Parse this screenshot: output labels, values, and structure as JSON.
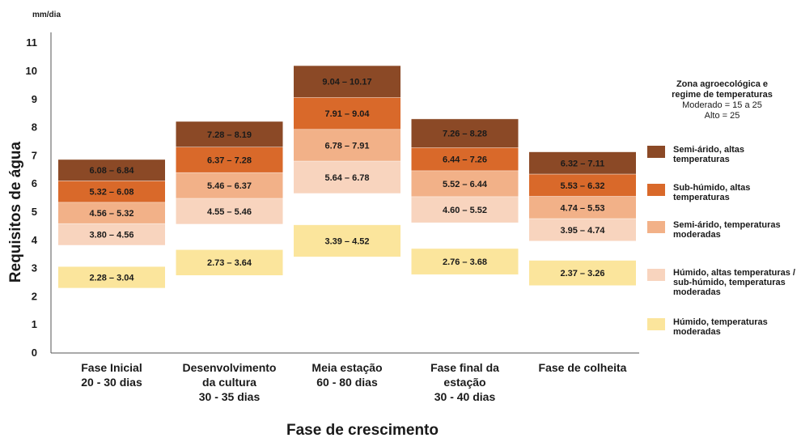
{
  "chart_data": {
    "type": "bar",
    "subtype": "floating-stacked-range",
    "unit_label": "mm/dia",
    "ylabel": "Requisitos de água",
    "xlabel": "Fase de crescimento",
    "ylim": [
      0,
      11
    ],
    "yticks": [
      0,
      1,
      2,
      3,
      4,
      5,
      6,
      7,
      8,
      9,
      10,
      11
    ],
    "grid": false,
    "legend_position": "right",
    "categories": [
      {
        "line1": "Fase Inicial",
        "line2": "20 - 30 dias",
        "line3": ""
      },
      {
        "line1": "Desenvolvimento",
        "line2": "da cultura",
        "line3": "30 - 35 dias"
      },
      {
        "line1": "Meia estação",
        "line2": "60 - 80 dias",
        "line3": ""
      },
      {
        "line1": "Fase final da",
        "line2": "estação",
        "line3": "30 - 40 dias"
      },
      {
        "line1": "Fase de colheita",
        "line2": "",
        "line3": ""
      }
    ],
    "series": [
      {
        "name": "Húmido, temperaturas moderadas",
        "color": "#fbe59c",
        "ranges": [
          [
            2.28,
            3.04
          ],
          [
            2.73,
            3.64
          ],
          [
            3.39,
            4.52
          ],
          [
            2.76,
            3.68
          ],
          [
            2.37,
            3.26
          ]
        ],
        "labels": [
          "2.28 – 3.04",
          "2.73 – 3.64",
          "3.39 – 4.52",
          "2.76 – 3.68",
          "2.37 – 3.26"
        ]
      },
      {
        "name": "Húmido, altas temperaturas / sub-húmido, temperaturas moderadas",
        "color": "#f8d4be",
        "ranges": [
          [
            3.8,
            4.56
          ],
          [
            4.55,
            5.46
          ],
          [
            5.64,
            6.78
          ],
          [
            4.6,
            5.52
          ],
          [
            3.95,
            4.74
          ]
        ],
        "labels": [
          "3.80 – 4.56",
          "4.55 – 5.46",
          "5.64 – 6.78",
          "4.60 – 5.52",
          "3.95 – 4.74"
        ]
      },
      {
        "name": "Semi-árido, temperaturas moderadas",
        "color": "#f2b188",
        "ranges": [
          [
            4.56,
            5.32
          ],
          [
            5.46,
            6.37
          ],
          [
            6.78,
            7.91
          ],
          [
            5.52,
            6.44
          ],
          [
            4.74,
            5.53
          ]
        ],
        "labels": [
          "4.56 – 5.32",
          "5.46 – 6.37",
          "6.78 – 7.91",
          "5.52 – 6.44",
          "4.74 – 5.53"
        ]
      },
      {
        "name": "Sub-húmido, altas temperaturas",
        "color": "#d9692a",
        "ranges": [
          [
            5.32,
            6.08
          ],
          [
            6.37,
            7.28
          ],
          [
            7.91,
            9.04
          ],
          [
            6.44,
            7.26
          ],
          [
            5.53,
            6.32
          ]
        ],
        "labels": [
          "5.32 – 6.08",
          "6.37 – 7.28",
          "7.91 – 9.04",
          "6.44 – 7.26",
          "5.53 – 6.32"
        ]
      },
      {
        "name": "Semi-árido, altas temperaturas",
        "color": "#8b4926",
        "ranges": [
          [
            6.08,
            6.84
          ],
          [
            7.28,
            8.19
          ],
          [
            9.04,
            10.17
          ],
          [
            7.26,
            8.28
          ],
          [
            6.32,
            7.11
          ]
        ],
        "labels": [
          "6.08 – 6.84",
          "7.28 – 8.19",
          "9.04 – 10.17",
          "7.26 – 8.28",
          "6.32 – 7.11"
        ]
      }
    ]
  },
  "legend": {
    "title_line1": "Zona agroecológica e",
    "title_line2": "regime de temperaturas",
    "note_line1": "Moderado = 15 a 25",
    "note_line2": "Alto = 25",
    "items": [
      {
        "label": "Semi-árido, altas temperaturas",
        "color": "#8b4926"
      },
      {
        "label": "Sub-húmido, altas temperaturas",
        "color": "#d9692a"
      },
      {
        "label": "Semi-árido, temperaturas moderadas",
        "color": "#f2b188"
      },
      {
        "label": "Húmido, altas temperaturas / sub-húmido, temperaturas moderadas",
        "color": "#f8d4be"
      },
      {
        "label": "Húmido, temperaturas moderadas",
        "color": "#fbe59c"
      }
    ]
  }
}
